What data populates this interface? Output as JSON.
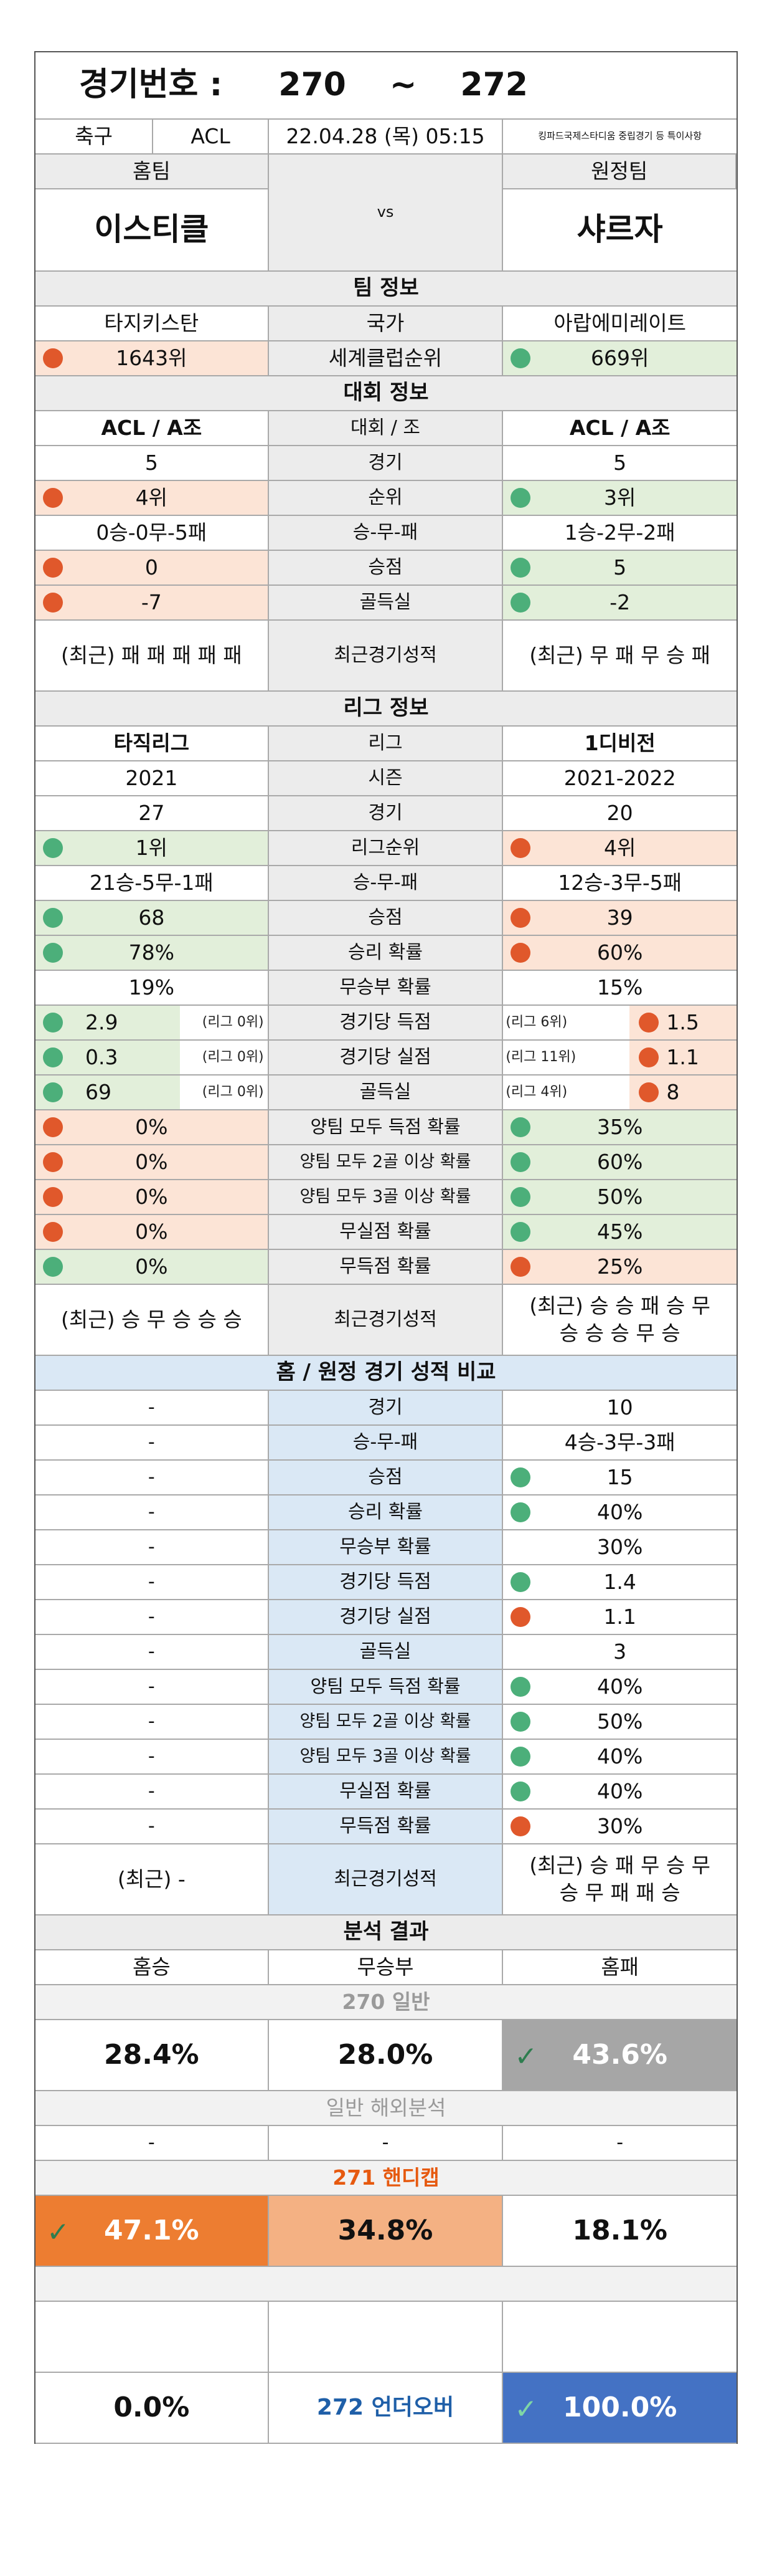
{
  "game": {
    "label": "경기번호 :",
    "from": "270",
    "tilde": "~",
    "to": "272"
  },
  "meta": {
    "sport": "축구",
    "league": "ACL",
    "datetime": "22.04.28 (목) 05:15",
    "note": "킹파드국제스타디움 중립경기 등 특이사항"
  },
  "teams": {
    "home_label": "홈팀",
    "away_label": "원정팀",
    "vs": "vs",
    "home": "이스티클",
    "away": "샤르자"
  },
  "team_info": {
    "title": "팀 정보",
    "rows": [
      {
        "home": "타지키스탄",
        "label": "국가",
        "away": "아랍에미레이트"
      },
      {
        "home": "1643위",
        "label": "세계클럽순위",
        "away": "669위"
      }
    ]
  },
  "tournament": {
    "title": "대회 정보",
    "rows": [
      {
        "home": "ACL / A조",
        "label": "대회 / 조",
        "away": "ACL / A조"
      },
      {
        "home": "5",
        "label": "경기",
        "away": "5"
      },
      {
        "home": "4위",
        "label": "순위",
        "away": "3위"
      },
      {
        "home": "0승-0무-5패",
        "label": "승-무-패",
        "away": "1승-2무-2패"
      },
      {
        "home": "0",
        "label": "승점",
        "away": "5"
      },
      {
        "home": "-7",
        "label": "골득실",
        "away": "-2"
      },
      {
        "home": "(최근) 패 패 패 패 패",
        "label": "최근경기성적",
        "away": "(최근) 무 패 무 승 패"
      }
    ]
  },
  "league": {
    "title": "리그 정보",
    "rows": [
      {
        "home": "타직리그",
        "label": "리그",
        "away": "1디비전"
      },
      {
        "home": "2021",
        "label": "시즌",
        "away": "2021-2022"
      },
      {
        "home": "27",
        "label": "경기",
        "away": "20"
      },
      {
        "home": "1위",
        "label": "리그순위",
        "away": "4위"
      },
      {
        "home": "21승-5무-1패",
        "label": "승-무-패",
        "away": "12승-3무-5패"
      },
      {
        "home": "68",
        "label": "승점",
        "away": "39"
      },
      {
        "home": "78%",
        "label": "승리 확률",
        "away": "60%"
      },
      {
        "home": "19%",
        "label": "무승부 확률",
        "away": "15%"
      },
      {
        "home": "2.9",
        "home_rank": "(리그 0위)",
        "label": "경기당 득점",
        "away_rank": "(리그 6위)",
        "away": "1.5"
      },
      {
        "home": "0.3",
        "home_rank": "(리그 0위)",
        "label": "경기당 실점",
        "away_rank": "(리그 11위)",
        "away": "1.1"
      },
      {
        "home": "69",
        "home_rank": "(리그 0위)",
        "label": "골득실",
        "away_rank": "(리그 4위)",
        "away": "8"
      },
      {
        "home": "0%",
        "label": "양팀 모두 득점 확률",
        "away": "35%"
      },
      {
        "home": "0%",
        "label": "양팀 모두 2골 이상 확률",
        "away": "60%"
      },
      {
        "home": "0%",
        "label": "양팀 모두 3골 이상 확률",
        "away": "50%"
      },
      {
        "home": "0%",
        "label": "무실점 확률",
        "away": "45%"
      },
      {
        "home": "0%",
        "label": "무득점 확률",
        "away": "25%"
      },
      {
        "home": "(최근) 승 무 승 승 승",
        "label": "최근경기성적",
        "away1": "(최근) 승 승 패 승 무",
        "away2": "승 승 승 무 승"
      }
    ]
  },
  "compare": {
    "title": "홈 / 원정 경기 성적 비교",
    "rows": [
      {
        "home": "-",
        "label": "경기",
        "away": "10"
      },
      {
        "home": "-",
        "label": "승-무-패",
        "away": "4승-3무-3패"
      },
      {
        "home": "-",
        "label": "승점",
        "away": "15"
      },
      {
        "home": "-",
        "label": "승리 확률",
        "away": "40%"
      },
      {
        "home": "-",
        "label": "무승부 확률",
        "away": "30%"
      },
      {
        "home": "-",
        "label": "경기당 득점",
        "away": "1.4"
      },
      {
        "home": "-",
        "label": "경기당 실점",
        "away": "1.1"
      },
      {
        "home": "-",
        "label": "골득실",
        "away": "3"
      },
      {
        "home": "-",
        "label": "양팀 모두 득점 확률",
        "away": "40%"
      },
      {
        "home": "-",
        "label": "양팀 모두 2골 이상 확률",
        "away": "50%"
      },
      {
        "home": "-",
        "label": "양팀 모두 3골 이상 확률",
        "away": "40%"
      },
      {
        "home": "-",
        "label": "무실점 확률",
        "away": "40%"
      },
      {
        "home": "-",
        "label": "무득점 확률",
        "away": "30%"
      },
      {
        "home": "(최근) -",
        "label": "최근경기성적",
        "away1": "(최근) 승 패 무 승 무",
        "away2": "승 무 패 패 승"
      }
    ]
  },
  "analysis": {
    "title": "분석 결과",
    "home_win": "홈승",
    "draw": "무승부",
    "home_loss": "홈패",
    "general_title": "270 일반",
    "general": [
      "28.4%",
      "28.0%",
      "43.6%"
    ],
    "overseas_title": "일반 해외분석",
    "overseas": [
      "-",
      "-",
      "-"
    ],
    "handicap_title": "271 핸디캡",
    "handicap": [
      "47.1%",
      "34.8%",
      "18.1%"
    ],
    "uo_under": "0.0%",
    "uo_title": "272 언더오버",
    "uo_over": "100.0%"
  },
  "colors": {
    "green_dot": "#4caf7a",
    "red_dot": "#e0582b",
    "handicap_win": "#ed7d31",
    "handicap_draw": "#f4b183",
    "general_pick": "#a6a6a6",
    "over_pick": "#4472c4"
  }
}
